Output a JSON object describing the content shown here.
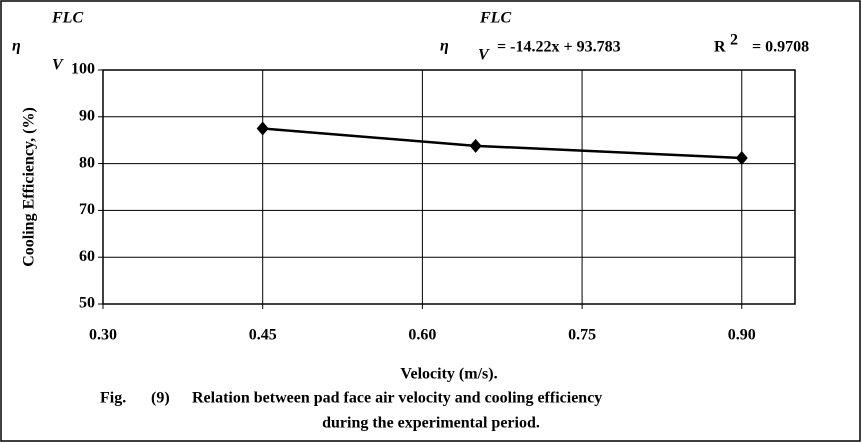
{
  "chart_data": {
    "type": "line",
    "x_label": "Velocity (m/s).",
    "y_label": "Cooling Efficiency, (%)",
    "x": [
      0.45,
      0.65,
      0.9
    ],
    "series": [
      {
        "name": null,
        "color": "#000000",
        "values": [
          87.5,
          83.8,
          81.2
        ]
      }
    ],
    "xlim": [
      0.3,
      0.95
    ],
    "xticks": [
      {
        "value": 0.3,
        "label": "0.30"
      },
      {
        "value": 0.45,
        "label": "0.45"
      },
      {
        "value": 0.6,
        "label": "0.60"
      },
      {
        "value": 0.75,
        "label": "0.75"
      },
      {
        "value": 0.9,
        "label": "0.90"
      }
    ],
    "ylim": [
      50,
      100
    ],
    "yticks": [
      50,
      60,
      70,
      80,
      90,
      100
    ],
    "grid": true,
    "symbol": {
      "main": "η",
      "sup": "FLC",
      "sub": "V"
    },
    "equation": "= -14.22x + 93.783",
    "r2": {
      "label": "R",
      "sup": "2",
      "value": "= 0.9708"
    },
    "caption": {
      "fig": "Fig.",
      "number": "(9)",
      "line1": "Relation between pad face air velocity and cooling efficiency",
      "line2": "during the experimental period."
    }
  }
}
